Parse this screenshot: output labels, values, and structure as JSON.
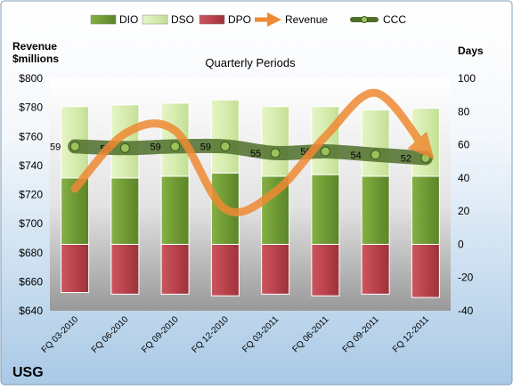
{
  "chart_data": {
    "type": "bar",
    "title": "Quarterly Periods",
    "company": "USG",
    "left_axis_label_line1": "Revenue",
    "left_axis_label_line2": "$millions",
    "right_axis_label": "Days",
    "left_ylim": [
      640,
      800
    ],
    "left_yticks": [
      "$640",
      "$660",
      "$680",
      "$700",
      "$720",
      "$740",
      "$760",
      "$780",
      "$800"
    ],
    "right_ylim": [
      -40,
      100
    ],
    "right_yticks": [
      "-40",
      "-20",
      "0",
      "20",
      "40",
      "60",
      "80",
      "100"
    ],
    "categories": [
      "FQ 03-2010",
      "FQ 06-2010",
      "FQ 09-2010",
      "FQ 12-2010",
      "FQ 03-2011",
      "FQ 06-2011",
      "FQ 09-2011",
      "FQ 12-2011"
    ],
    "legend_position": "top",
    "series": [
      {
        "name": "DIO",
        "axis": "right",
        "color": "#6f9a34",
        "values": [
          40,
          40,
          41,
          43,
          41,
          42,
          41,
          41
        ]
      },
      {
        "name": "DSO",
        "axis": "right",
        "color": "#d6ecae",
        "values": [
          43,
          44,
          44,
          44,
          42,
          41,
          40,
          41
        ]
      },
      {
        "name": "DPO",
        "axis": "right",
        "color": "#b9424b",
        "values": [
          -29,
          -30,
          -30,
          -31,
          -30,
          -31,
          -30,
          -32
        ]
      },
      {
        "name": "Revenue",
        "axis": "left",
        "color": "#ef8a34",
        "values": [
          724,
          762,
          764,
          710,
          722,
          760,
          790,
          751
        ]
      },
      {
        "name": "CCC",
        "axis": "right",
        "color": "#6a8d3a",
        "values": [
          59,
          58,
          59,
          59,
          55,
          56,
          54,
          52
        ],
        "labels": [
          "59",
          "58",
          "59",
          "59",
          "55",
          "56",
          "54",
          "52"
        ]
      }
    ],
    "grid": false
  }
}
